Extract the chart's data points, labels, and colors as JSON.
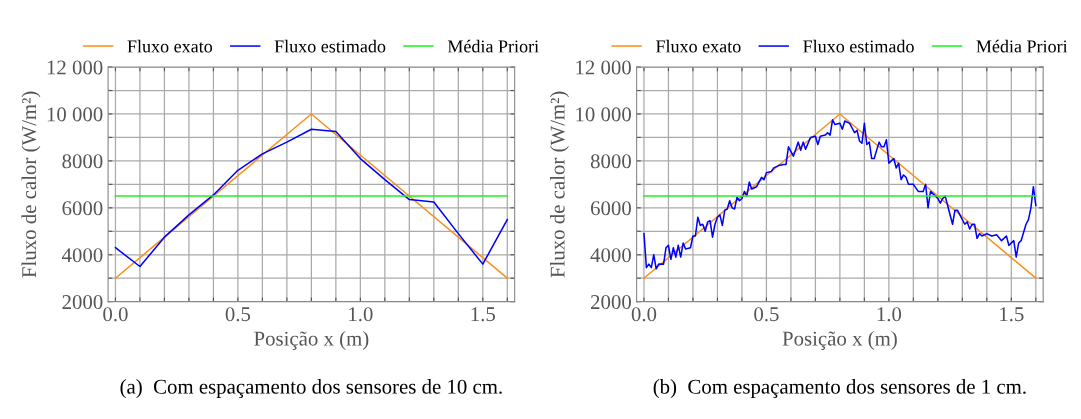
{
  "chart_data": [
    {
      "type": "line",
      "xlabel": "Posição x (m)",
      "ylabel": "Fluxo de calor (W/m²)",
      "annotations": [
        "(a)  Com espaçamento dos sensores de 10 cm."
      ],
      "xlim": [
        -0.03,
        1.63
      ],
      "ylim": [
        2000,
        12000
      ],
      "xticks": [
        {
          "value": 0,
          "label": "0.0"
        },
        {
          "value": 0.1,
          "label": null
        },
        {
          "value": 0.2,
          "label": null
        },
        {
          "value": 0.3,
          "label": null
        },
        {
          "value": 0.4,
          "label": null
        },
        {
          "value": 0.5,
          "label": "0.5"
        },
        {
          "value": 0.6,
          "label": null
        },
        {
          "value": 0.7,
          "label": null
        },
        {
          "value": 0.8,
          "label": null
        },
        {
          "value": 0.9,
          "label": null
        },
        {
          "value": 1.0,
          "label": "1.0"
        },
        {
          "value": 1.1,
          "label": null
        },
        {
          "value": 1.2,
          "label": null
        },
        {
          "value": 1.3,
          "label": null
        },
        {
          "value": 1.4,
          "label": null
        },
        {
          "value": 1.5,
          "label": "1.5"
        },
        {
          "value": 1.6,
          "label": null
        }
      ],
      "yticks": [
        2000,
        {
          "value": 3000,
          "label": null
        },
        4000,
        {
          "value": 5000,
          "label": null
        },
        6000,
        {
          "value": 7000,
          "label": null
        },
        8000,
        {
          "value": 9000,
          "label": null
        },
        {
          "value": 10000,
          "label": "10 000"
        },
        {
          "value": 11000,
          "label": null
        },
        {
          "value": 12000,
          "label": "12 000"
        }
      ],
      "grid": true,
      "legend": "top",
      "marker": "none",
      "line_style": "solid",
      "series": [
        {
          "name": "Fluxo exato",
          "color": "#f7901e",
          "x": [
            0,
            0.8,
            1.6
          ],
          "values": [
            3000,
            10000,
            3000
          ]
        },
        {
          "name": "Fluxo estimado",
          "color": "#0000ff",
          "x": [
            0,
            0.1,
            0.2,
            0.3,
            0.4,
            0.5,
            0.6,
            0.7,
            0.8,
            0.9,
            1.0,
            1.1,
            1.2,
            1.3,
            1.4,
            1.5,
            1.6
          ],
          "values": [
            4300,
            3500,
            4750,
            5700,
            6550,
            7600,
            8300,
            8800,
            9350,
            9250,
            8100,
            7200,
            6350,
            6250,
            4900,
            3600,
            5500
          ]
        },
        {
          "name": "Média Priori",
          "color": "#22ee22",
          "x": [
            0,
            1.6
          ],
          "values": [
            6500,
            6500
          ]
        }
      ]
    },
    {
      "type": "line",
      "xlabel": "Posição x (m)",
      "ylabel": "Fluxo de calor (W/m²)",
      "annotations": [
        "(b)  Com espaçamento dos sensores de 1 cm."
      ],
      "xlim": [
        -0.03,
        1.63
      ],
      "ylim": [
        2000,
        12000
      ],
      "xticks": [
        {
          "value": 0,
          "label": "0.0"
        },
        {
          "value": 0.1,
          "label": null
        },
        {
          "value": 0.2,
          "label": null
        },
        {
          "value": 0.3,
          "label": null
        },
        {
          "value": 0.4,
          "label": null
        },
        {
          "value": 0.5,
          "label": "0.5"
        },
        {
          "value": 0.6,
          "label": null
        },
        {
          "value": 0.7,
          "label": null
        },
        {
          "value": 0.8,
          "label": null
        },
        {
          "value": 0.9,
          "label": null
        },
        {
          "value": 1.0,
          "label": "1.0"
        },
        {
          "value": 1.1,
          "label": null
        },
        {
          "value": 1.2,
          "label": null
        },
        {
          "value": 1.3,
          "label": null
        },
        {
          "value": 1.4,
          "label": null
        },
        {
          "value": 1.5,
          "label": "1.5"
        },
        {
          "value": 1.6,
          "label": null
        }
      ],
      "yticks": [
        2000,
        {
          "value": 3000,
          "label": null
        },
        4000,
        {
          "value": 5000,
          "label": null
        },
        6000,
        {
          "value": 7000,
          "label": null
        },
        8000,
        {
          "value": 9000,
          "label": null
        },
        {
          "value": 10000,
          "label": "10 000"
        },
        {
          "value": 11000,
          "label": null
        },
        {
          "value": 12000,
          "label": "12 000"
        }
      ],
      "grid": true,
      "legend": "top",
      "marker": "none",
      "line_style": "solid",
      "series": [
        {
          "name": "Fluxo exato",
          "color": "#f7901e",
          "x": [
            0,
            0.8,
            1.6
          ],
          "values": [
            3000,
            10000,
            3000
          ]
        },
        {
          "name": "Fluxo estimado",
          "color": "#0000ff",
          "x": [
            0,
            0.01,
            0.02,
            0.03,
            0.04,
            0.05,
            0.06,
            0.08,
            0.09,
            0.1,
            0.11,
            0.12,
            0.13,
            0.14,
            0.15,
            0.16,
            0.17,
            0.19,
            0.2,
            0.21,
            0.22,
            0.23,
            0.24,
            0.25,
            0.26,
            0.27,
            0.28,
            0.29,
            0.3,
            0.31,
            0.32,
            0.33,
            0.34,
            0.35,
            0.36,
            0.37,
            0.38,
            0.39,
            0.4,
            0.41,
            0.42,
            0.43,
            0.44,
            0.46,
            0.48,
            0.49,
            0.5,
            0.52,
            0.53,
            0.55,
            0.57,
            0.58,
            0.59,
            0.61,
            0.63,
            0.64,
            0.65,
            0.66,
            0.68,
            0.7,
            0.71,
            0.72,
            0.74,
            0.75,
            0.76,
            0.77,
            0.78,
            0.8,
            0.81,
            0.82,
            0.84,
            0.86,
            0.87,
            0.88,
            0.89,
            0.9,
            0.91,
            0.92,
            0.93,
            0.94,
            0.96,
            0.97,
            0.98,
            0.99,
            1.0,
            1.01,
            1.02,
            1.03,
            1.04,
            1.05,
            1.06,
            1.07,
            1.08,
            1.1,
            1.12,
            1.14,
            1.15,
            1.16,
            1.17,
            1.19,
            1.2,
            1.21,
            1.22,
            1.23,
            1.24,
            1.26,
            1.27,
            1.28,
            1.29,
            1.31,
            1.32,
            1.33,
            1.34,
            1.35,
            1.36,
            1.37,
            1.38,
            1.4,
            1.42,
            1.44,
            1.46,
            1.48,
            1.49,
            1.51,
            1.52,
            1.53,
            1.54,
            1.56,
            1.57,
            1.58,
            1.59,
            1.6
          ],
          "values": [
            4900,
            3450,
            3600,
            3450,
            4000,
            3400,
            3600,
            3600,
            4300,
            4400,
            3800,
            4300,
            3900,
            4400,
            3900,
            4500,
            4250,
            4300,
            4800,
            4800,
            5600,
            5250,
            5300,
            5000,
            5400,
            5450,
            4750,
            5300,
            5600,
            5700,
            5250,
            5900,
            5950,
            6300,
            6000,
            5950,
            6450,
            6300,
            6400,
            6700,
            6500,
            7100,
            6800,
            6900,
            7300,
            7200,
            7500,
            7550,
            7700,
            7800,
            7850,
            7850,
            8600,
            8200,
            8800,
            8450,
            8800,
            8500,
            9000,
            9050,
            8700,
            9050,
            9100,
            9200,
            9100,
            9750,
            9550,
            9600,
            9350,
            9700,
            9600,
            9200,
            9300,
            8850,
            8750,
            9600,
            8700,
            8800,
            8100,
            8100,
            8800,
            8600,
            8600,
            8900,
            7900,
            8000,
            8100,
            7700,
            7900,
            7200,
            7400,
            7300,
            7000,
            7000,
            6700,
            6700,
            7000,
            6000,
            6700,
            6500,
            6400,
            6200,
            6400,
            6500,
            6100,
            5300,
            5900,
            5900,
            5700,
            5300,
            5400,
            5100,
            5300,
            5300,
            4700,
            4900,
            4800,
            4900,
            4800,
            4850,
            4600,
            4800,
            4400,
            4600,
            3900,
            4500,
            4600,
            5300,
            5500,
            6000,
            6900,
            6100
          ]
        },
        {
          "name": "Média Priori",
          "color": "#22ee22",
          "x": [
            0,
            1.6
          ],
          "values": [
            6500,
            6500
          ]
        }
      ]
    }
  ]
}
